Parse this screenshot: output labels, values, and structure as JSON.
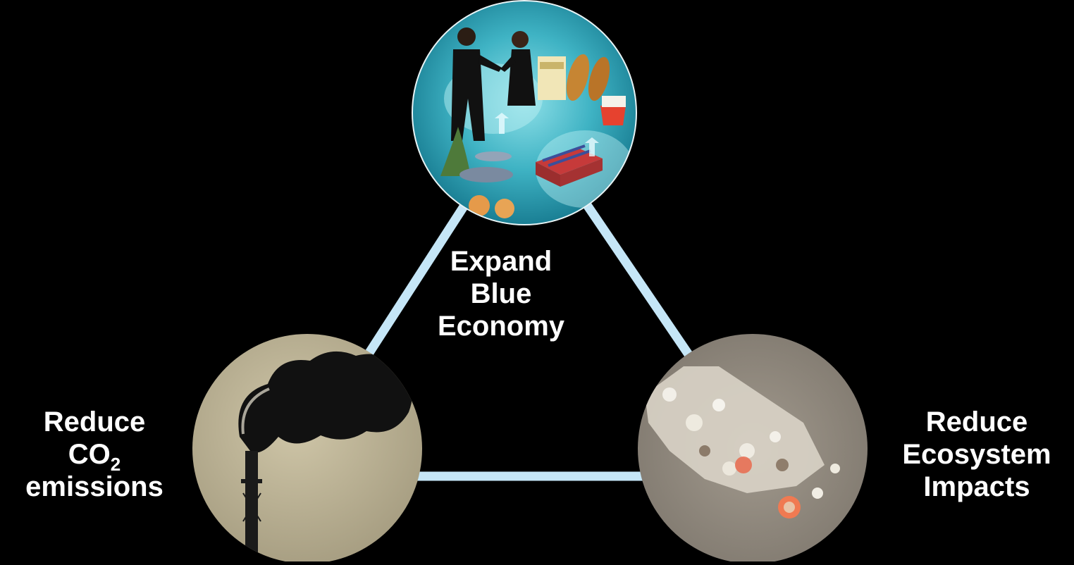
{
  "nodes": {
    "top": {
      "lines": [
        "Expand",
        "Blue",
        "Economy"
      ],
      "image": "blue-economy-collage"
    },
    "left": {
      "line1": "Reduce",
      "co2_main": "CO",
      "co2_sub": "2",
      "line3": "emissions",
      "image": "smokestack-emissions-photo"
    },
    "right": {
      "lines": [
        "Reduce",
        "Ecosystem",
        "Impacts"
      ],
      "image": "seafloor-coral-rubble-photo"
    }
  },
  "colors": {
    "background": "#000000",
    "connector": "#c5e6f7",
    "text": "#ffffff"
  }
}
